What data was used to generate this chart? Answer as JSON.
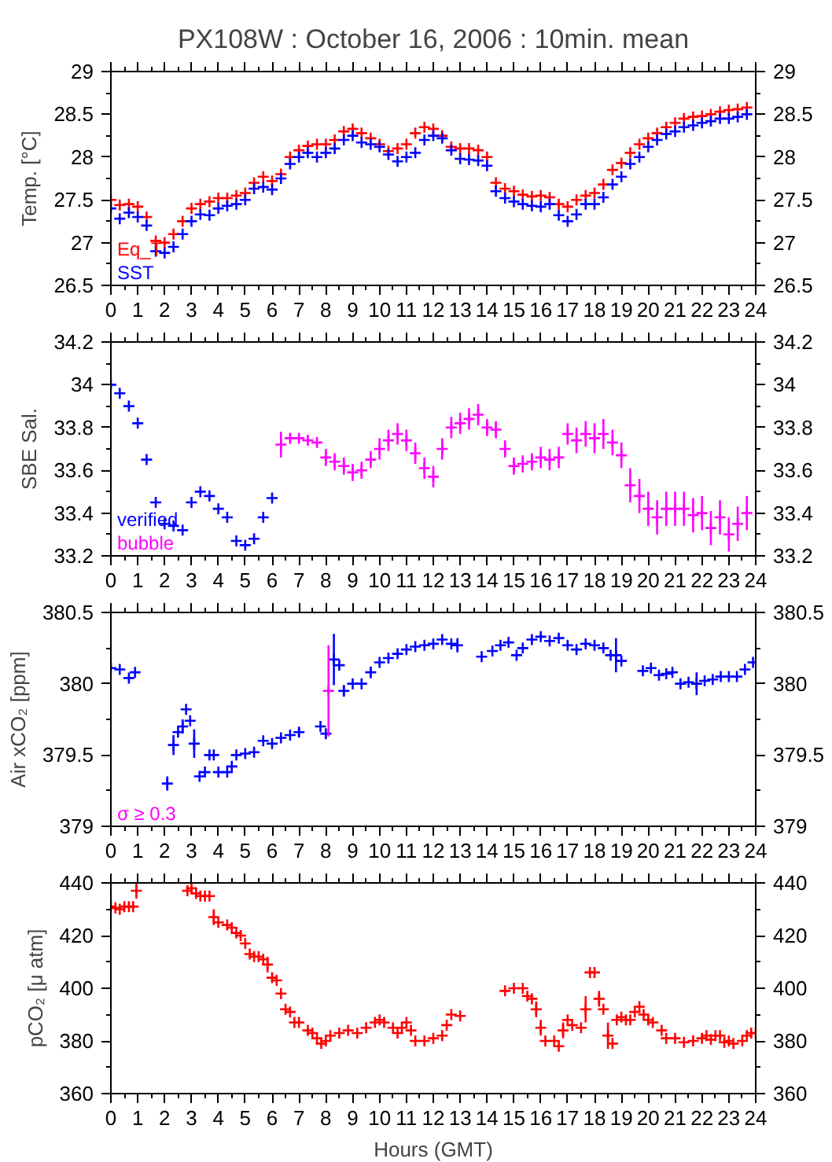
{
  "chart_data": [
    {
      "type": "scatter",
      "title": "PX108W : October 16, 2006 : 10min. mean",
      "ylabel": "Temp. [°C]",
      "marker": "cross",
      "legend": "bottom left",
      "xlim": [
        0,
        24
      ],
      "xticks": [
        0,
        1,
        2,
        3,
        4,
        5,
        6,
        7,
        8,
        9,
        10,
        11,
        12,
        13,
        14,
        15,
        16,
        17,
        18,
        19,
        20,
        21,
        22,
        23,
        24
      ],
      "ylim": [
        26.5,
        29
      ],
      "yticks": [
        26.5,
        27,
        27.5,
        28,
        28.5,
        29
      ],
      "y2lim": [
        26.5,
        29
      ],
      "y2ticks": [
        26.5,
        27,
        27.5,
        28,
        28.5,
        29
      ],
      "x": [
        0,
        0.33,
        0.67,
        1,
        1.33,
        1.67,
        2,
        2.33,
        2.67,
        3,
        3.33,
        3.67,
        4,
        4.33,
        4.67,
        5,
        5.33,
        5.67,
        6,
        6.33,
        6.67,
        7,
        7.33,
        7.67,
        8,
        8.33,
        8.67,
        9,
        9.33,
        9.67,
        10,
        10.33,
        10.67,
        11,
        11.33,
        11.67,
        12,
        12.33,
        12.67,
        13,
        13.33,
        13.67,
        14,
        14.33,
        14.67,
        15,
        15.33,
        15.67,
        16,
        16.33,
        16.67,
        17,
        17.33,
        17.67,
        18,
        18.33,
        18.67,
        19,
        19.33,
        19.67,
        20,
        20.33,
        20.67,
        21,
        21.33,
        21.67,
        22,
        22.33,
        22.67,
        23,
        23.33,
        23.67
      ],
      "series": [
        {
          "name": "Eq_T",
          "color": "#ff0000",
          "values": [
            27.5,
            27.44,
            27.45,
            27.42,
            27.3,
            27.02,
            27.0,
            27.1,
            27.25,
            27.4,
            27.45,
            27.48,
            27.52,
            27.52,
            27.55,
            27.58,
            27.7,
            27.77,
            27.72,
            27.8,
            28.0,
            28.08,
            28.13,
            28.15,
            28.15,
            28.2,
            28.3,
            28.33,
            28.28,
            28.22,
            28.15,
            28.07,
            28.1,
            28.15,
            28.28,
            28.35,
            28.33,
            28.25,
            28.12,
            28.1,
            28.1,
            28.08,
            28.0,
            27.7,
            27.63,
            27.6,
            27.56,
            27.54,
            27.55,
            27.53,
            27.45,
            27.42,
            27.5,
            27.55,
            27.58,
            27.68,
            27.85,
            27.93,
            28.05,
            28.15,
            28.22,
            28.28,
            28.35,
            28.4,
            28.45,
            28.47,
            28.48,
            28.5,
            28.53,
            28.55,
            28.56,
            28.58
          ]
        },
        {
          "name": "SST",
          "color": "#0000ff",
          "values": [
            27.4,
            27.28,
            27.35,
            27.3,
            27.2,
            26.9,
            26.88,
            26.95,
            27.1,
            27.25,
            27.33,
            27.32,
            27.4,
            27.43,
            27.45,
            27.5,
            27.63,
            27.65,
            27.62,
            27.75,
            27.92,
            28.0,
            28.05,
            28.0,
            28.05,
            28.1,
            28.2,
            28.25,
            28.17,
            28.15,
            28.12,
            28.03,
            27.95,
            28.0,
            28.05,
            28.2,
            28.25,
            28.22,
            28.08,
            27.98,
            27.97,
            27.96,
            27.9,
            27.6,
            27.52,
            27.48,
            27.45,
            27.43,
            27.42,
            27.45,
            27.32,
            27.25,
            27.33,
            27.45,
            27.45,
            27.53,
            27.68,
            27.77,
            27.92,
            28.0,
            28.12,
            28.2,
            28.27,
            28.3,
            28.35,
            28.37,
            28.4,
            28.42,
            28.45,
            28.45,
            28.47,
            28.5
          ]
        }
      ]
    },
    {
      "type": "scatter",
      "ylabel": "SBE Sal.",
      "marker": "cross",
      "legend": "bottom left",
      "xlim": [
        0,
        24
      ],
      "xticks": [
        0,
        1,
        2,
        3,
        4,
        5,
        6,
        7,
        8,
        9,
        10,
        11,
        12,
        13,
        14,
        15,
        16,
        17,
        18,
        19,
        20,
        21,
        22,
        23,
        24
      ],
      "ylim": [
        33.2,
        34.2
      ],
      "yticks": [
        33.2,
        33.4,
        33.6,
        33.8,
        34,
        34.2
      ],
      "y2lim": [
        33.2,
        34.2
      ],
      "y2ticks": [
        33.2,
        33.4,
        33.6,
        33.8,
        34,
        34.2
      ],
      "series": [
        {
          "name": "verified",
          "color": "#0000ff",
          "x": [
            0,
            0.33,
            0.67,
            1,
            1.33,
            1.67,
            2,
            2.33,
            2.67,
            3,
            3.33,
            3.67,
            4,
            4.33,
            4.67,
            5,
            5.33,
            5.67,
            6
          ],
          "values": [
            34.0,
            33.96,
            33.9,
            33.82,
            33.65,
            33.45,
            33.35,
            33.34,
            33.32,
            33.45,
            33.5,
            33.48,
            33.42,
            33.38,
            33.27,
            33.25,
            33.28,
            33.38,
            33.47
          ]
        },
        {
          "name": "bubble",
          "color": "#ff00ff",
          "x": [
            6.33,
            6.67,
            7,
            7.33,
            7.67,
            8,
            8.33,
            8.67,
            9,
            9.33,
            9.67,
            10,
            10.33,
            10.67,
            11,
            11.33,
            11.67,
            12,
            12.33,
            12.67,
            13,
            13.33,
            13.67,
            14,
            14.33,
            14.67,
            15,
            15.33,
            15.67,
            16,
            16.33,
            16.67,
            17,
            17.33,
            17.67,
            18,
            18.33,
            18.67,
            19,
            19.33,
            19.67,
            20,
            20.33,
            20.67,
            21,
            21.33,
            21.67,
            22,
            22.33,
            22.67,
            23,
            23.33,
            23.67
          ],
          "values": [
            33.72,
            33.75,
            33.75,
            33.74,
            33.73,
            33.66,
            33.64,
            33.62,
            33.59,
            33.6,
            33.65,
            33.7,
            33.74,
            33.77,
            33.74,
            33.68,
            33.61,
            33.57,
            33.7,
            33.8,
            33.82,
            33.84,
            33.86,
            33.8,
            33.79,
            33.7,
            33.62,
            33.63,
            33.64,
            33.66,
            33.65,
            33.66,
            33.77,
            33.74,
            33.77,
            33.75,
            33.77,
            33.73,
            33.67,
            33.53,
            33.48,
            33.42,
            33.38,
            33.42,
            33.42,
            33.42,
            33.39,
            33.4,
            33.33,
            33.38,
            33.3,
            33.35,
            33.4
          ],
          "errors": [
            0.06,
            null,
            null,
            null,
            null,
            0.04,
            0.04,
            0.04,
            0.04,
            0.04,
            0.04,
            0.05,
            0.05,
            0.05,
            0.05,
            0.05,
            0.05,
            0.05,
            0.05,
            0.05,
            0.05,
            0.05,
            0.05,
            0.04,
            0.04,
            0.04,
            0.04,
            0.04,
            0.04,
            0.05,
            0.05,
            0.05,
            0.05,
            0.06,
            0.06,
            0.07,
            0.07,
            0.06,
            0.06,
            0.08,
            0.08,
            0.08,
            0.08,
            0.08,
            0.08,
            0.08,
            0.08,
            0.08,
            0.08,
            0.08,
            0.08,
            0.08,
            0.08
          ]
        }
      ]
    },
    {
      "type": "scatter",
      "ylabel": "Air xCO₂ [ppm]",
      "marker": "cross",
      "legend": "bottom left",
      "xlim": [
        0,
        24
      ],
      "xticks": [
        0,
        1,
        2,
        3,
        4,
        5,
        6,
        7,
        8,
        9,
        10,
        11,
        12,
        13,
        14,
        15,
        16,
        17,
        18,
        19,
        20,
        21,
        22,
        23,
        24
      ],
      "ylim": [
        379,
        380.5
      ],
      "yticks": [
        379,
        379.5,
        380,
        380.5
      ],
      "y2lim": [
        379,
        380.5
      ],
      "y2ticks": [
        379,
        379.5,
        380,
        380.5
      ],
      "series": [
        {
          "color": "#0000ff",
          "x": [
            0,
            0.33,
            0.67,
            0.9,
            2.1,
            2.33,
            2.5,
            2.67,
            2.8,
            2.95,
            3.1,
            3.3,
            3.5,
            3.67,
            3.83,
            4,
            4.33,
            4.5,
            4.67,
            5,
            5.33,
            5.67,
            6,
            6.33,
            6.67,
            7,
            7.8,
            8.0,
            8.3,
            8.5,
            8.67,
            9,
            9.33,
            9.67,
            10,
            10.33,
            10.67,
            11,
            11.33,
            11.67,
            12,
            12.33,
            12.67,
            12.9,
            13.8,
            14.2,
            14.5,
            14.8,
            15.1,
            15.33,
            15.67,
            16,
            16.33,
            16.67,
            17,
            17.33,
            17.67,
            18,
            18.33,
            18.6,
            18.8,
            19,
            19.8,
            20.1,
            20.4,
            20.67,
            20.9,
            21.2,
            21.5,
            21.8,
            22.1,
            22.4,
            22.7,
            23,
            23.3,
            23.6,
            23.9
          ],
          "values": [
            380.11,
            380.1,
            380.04,
            380.08,
            379.3,
            379.57,
            379.66,
            379.7,
            379.82,
            379.74,
            379.58,
            379.35,
            379.38,
            379.5,
            379.5,
            379.38,
            379.38,
            379.42,
            379.5,
            379.51,
            379.52,
            379.6,
            379.58,
            379.62,
            379.64,
            379.66,
            379.7,
            379.65,
            380.17,
            380.13,
            379.95,
            380.0,
            380.0,
            380.08,
            380.15,
            380.18,
            380.21,
            380.24,
            380.26,
            380.27,
            380.28,
            380.31,
            380.28,
            380.27,
            380.19,
            380.23,
            380.27,
            380.29,
            380.2,
            380.25,
            380.31,
            380.33,
            380.3,
            380.32,
            380.27,
            380.24,
            380.28,
            380.27,
            380.25,
            380.2,
            380.2,
            380.16,
            380.09,
            380.11,
            380.06,
            380.07,
            380.08,
            380.0,
            380.01,
            380.0,
            380.02,
            380.03,
            380.05,
            380.05,
            380.05,
            380.1,
            380.15
          ],
          "errors": [
            null,
            null,
            null,
            null,
            0.05,
            0.07,
            null,
            0.05,
            null,
            null,
            0.1,
            null,
            null,
            null,
            null,
            null,
            null,
            null,
            null,
            null,
            null,
            null,
            null,
            null,
            null,
            0.03,
            null,
            null,
            0.18,
            null,
            0.04,
            null,
            null,
            0.04,
            null,
            null,
            null,
            null,
            null,
            null,
            null,
            null,
            null,
            0.05,
            null,
            null,
            null,
            null,
            null,
            null,
            null,
            null,
            null,
            null,
            null,
            null,
            null,
            null,
            null,
            null,
            0.12,
            null,
            null,
            null,
            null,
            null,
            null,
            null,
            null,
            0.08,
            null,
            null,
            null,
            null,
            null,
            null,
            null
          ]
        },
        {
          "name": "σ ≥ 0.3",
          "color": "#ff00ff",
          "x": [
            8.1
          ],
          "values": [
            379.95
          ],
          "errors": [
            0.32
          ]
        }
      ]
    },
    {
      "type": "scatter",
      "ylabel": "pCO₂ [μ atm]",
      "xlabel": "Hours (GMT)",
      "marker": "cross",
      "xlim": [
        0,
        24
      ],
      "xticks": [
        0,
        1,
        2,
        3,
        4,
        5,
        6,
        7,
        8,
        9,
        10,
        11,
        12,
        13,
        14,
        15,
        16,
        17,
        18,
        19,
        20,
        21,
        22,
        23,
        24
      ],
      "ylim": [
        360,
        440
      ],
      "yticks": [
        360,
        380,
        400,
        420,
        440
      ],
      "y2lim": [
        360,
        440
      ],
      "y2ticks": [
        360,
        380,
        400,
        420,
        440
      ],
      "series": [
        {
          "color": "#ff0000",
          "x": [
            0,
            0.17,
            0.33,
            0.5,
            0.67,
            0.83,
            0.95,
            2.85,
            3.0,
            3.17,
            3.33,
            3.5,
            3.67,
            3.83,
            4,
            4.33,
            4.5,
            4.67,
            4.83,
            5,
            5.17,
            5.33,
            5.5,
            5.67,
            5.83,
            6,
            6.17,
            6.33,
            6.5,
            6.67,
            6.83,
            7,
            7.33,
            7.5,
            7.67,
            7.83,
            8,
            8.17,
            8.5,
            8.83,
            9.17,
            9.5,
            9.83,
            10,
            10.17,
            10.5,
            10.67,
            10.83,
            11,
            11.17,
            11.33,
            11.67,
            12,
            12.33,
            12.5,
            12.67,
            13,
            14.67,
            15,
            15.33,
            15.5,
            15.67,
            15.83,
            16,
            16.17,
            16.5,
            16.67,
            16.83,
            17,
            17.17,
            17.5,
            17.67,
            17.83,
            18,
            18.17,
            18.33,
            18.5,
            18.67,
            18.83,
            19,
            19.17,
            19.33,
            19.5,
            19.67,
            19.83,
            20,
            20.17,
            20.5,
            20.67,
            21,
            21.33,
            21.67,
            22,
            22.17,
            22.33,
            22.5,
            22.67,
            22.83,
            23,
            23.17,
            23.5,
            23.67,
            23.83,
            24
          ],
          "values": [
            431,
            430.5,
            430,
            431,
            431,
            431,
            437,
            437,
            438,
            436,
            435,
            435,
            435,
            427,
            425,
            424,
            423,
            421,
            420,
            417,
            413,
            412,
            412,
            411,
            409,
            404,
            403,
            398,
            392,
            391,
            387,
            387,
            384,
            383,
            381,
            379,
            380,
            382,
            383,
            384,
            383,
            385,
            387,
            388,
            387,
            385,
            383,
            385,
            387,
            384,
            380,
            380,
            381,
            382,
            386,
            390,
            389.5,
            399,
            400,
            400,
            397,
            396,
            392,
            385,
            380,
            380,
            378,
            384,
            388,
            386,
            385,
            392,
            406,
            406,
            396,
            392,
            382,
            379,
            388,
            389,
            388,
            388,
            391,
            393,
            390,
            388,
            387,
            384,
            381,
            381,
            379.5,
            380,
            381,
            382,
            380.5,
            382,
            382,
            379.5,
            380,
            379,
            380,
            382,
            383,
            383
          ],
          "errors": [
            null,
            null,
            null,
            null,
            null,
            null,
            3,
            null,
            null,
            null,
            null,
            null,
            null,
            3,
            null,
            null,
            null,
            null,
            null,
            null,
            null,
            null,
            null,
            null,
            3,
            null,
            null,
            null,
            null,
            null,
            null,
            null,
            null,
            null,
            null,
            null,
            null,
            null,
            null,
            null,
            null,
            null,
            null,
            null,
            null,
            null,
            null,
            null,
            null,
            null,
            null,
            null,
            null,
            null,
            null,
            null,
            null,
            null,
            null,
            null,
            null,
            null,
            3,
            3,
            null,
            null,
            null,
            3,
            null,
            null,
            null,
            5,
            null,
            null,
            3,
            null,
            5,
            null,
            null,
            null,
            null,
            null,
            null,
            null,
            null,
            null,
            null,
            null,
            null,
            null,
            null,
            null,
            null,
            null,
            null,
            null,
            null,
            null,
            null,
            null,
            null,
            null,
            null,
            null
          ]
        }
      ]
    }
  ]
}
